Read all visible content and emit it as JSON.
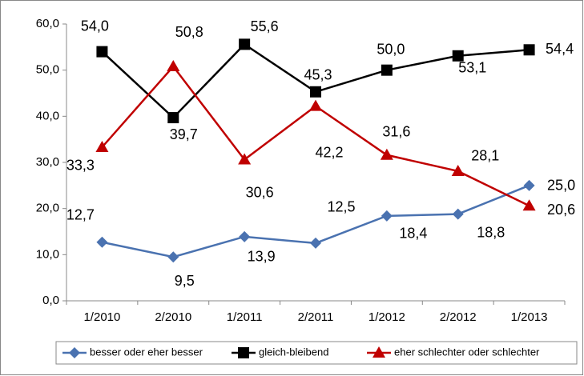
{
  "chart_data": {
    "type": "line",
    "categories": [
      "1/2010",
      "2/2010",
      "1/2011",
      "2/2011",
      "1/2012",
      "2/2012",
      "1/2013"
    ],
    "series": [
      {
        "name": "besser oder eher besser",
        "color": "#4a72b0",
        "marker": "diamond",
        "values": [
          12.7,
          9.5,
          13.9,
          12.5,
          18.4,
          18.8,
          25.0
        ],
        "value_labels": [
          "12,7",
          "9,5",
          "13,9",
          "12,5",
          "18,4",
          "18,8",
          "25,0"
        ]
      },
      {
        "name": "gleich-bleibend",
        "color": "#000000",
        "marker": "square",
        "values": [
          54.0,
          39.7,
          55.6,
          45.3,
          50.0,
          53.1,
          54.4
        ],
        "value_labels": [
          "54,0",
          "39,7",
          "55,6",
          "45,3",
          "50,0",
          "53,1",
          "54,4"
        ]
      },
      {
        "name": "eher schlechter oder schlechter",
        "color": "#c00000",
        "marker": "triangle",
        "values": [
          33.3,
          50.8,
          30.6,
          42.2,
          31.6,
          28.1,
          20.6
        ],
        "value_labels": [
          "33,3",
          "50,8",
          "30,6",
          "42,2",
          "31,6",
          "28,1",
          "20,6"
        ]
      }
    ],
    "ylim": [
      0,
      60
    ],
    "yticks": [
      {
        "value": 0,
        "label": "0,0"
      },
      {
        "value": 10,
        "label": "10,0"
      },
      {
        "value": 20,
        "label": "20,0"
      },
      {
        "value": 30,
        "label": "30,0"
      },
      {
        "value": 40,
        "label": "40,0"
      },
      {
        "value": 50,
        "label": "50,0"
      },
      {
        "value": 60,
        "label": "60,0"
      }
    ],
    "legend": "bottom"
  }
}
